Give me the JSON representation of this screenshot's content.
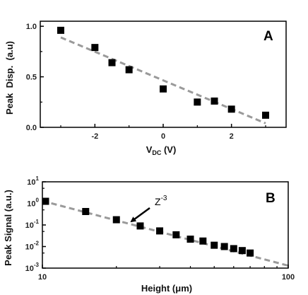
{
  "chart_data": [
    {
      "type": "scatter",
      "panel_label": "A",
      "xlabel_main": "V",
      "xlabel_sub": "DC",
      "xlabel_unit": " (V)",
      "ylabel": "Peak  Disp.  (a.u)",
      "xlim": [
        -3.6,
        3.6
      ],
      "ylim": [
        0.0,
        1.05
      ],
      "xticks": [
        {
          "v": -2,
          "label": "-2"
        },
        {
          "v": 0,
          "label": "0"
        },
        {
          "v": 2,
          "label": "2"
        }
      ],
      "yticks": [
        {
          "v": 0.0,
          "label": "0.0"
        },
        {
          "v": 0.5,
          "label": "0.5"
        },
        {
          "v": 1.0,
          "label": "1.0"
        }
      ],
      "points": [
        {
          "x": -3.0,
          "y": 0.96
        },
        {
          "x": -2.0,
          "y": 0.79
        },
        {
          "x": -1.5,
          "y": 0.64
        },
        {
          "x": -1.0,
          "y": 0.57
        },
        {
          "x": 0.0,
          "y": 0.38
        },
        {
          "x": 1.0,
          "y": 0.25
        },
        {
          "x": 1.5,
          "y": 0.26
        },
        {
          "x": 2.0,
          "y": 0.18
        },
        {
          "x": 3.0,
          "y": 0.12
        }
      ],
      "fit_line": [
        [
          -3.0,
          0.89
        ],
        [
          3.0,
          0.04
        ]
      ]
    },
    {
      "type": "scatter",
      "panel_label": "B",
      "xlabel_main": "Height (",
      "xlabel_mu": "μ",
      "xlabel_tail": "m)",
      "ylabel": "Peak Signal (a.u.)",
      "annotation": {
        "base": "Z",
        "exp": "-3"
      },
      "xscale": "log",
      "yscale": "log",
      "xlim": [
        10,
        100
      ],
      "ylim": [
        0.001,
        10
      ],
      "xticks": [
        {
          "v": 10,
          "label": "10"
        },
        {
          "v": 100,
          "label": "100"
        }
      ],
      "yticks": [
        {
          "v": 10,
          "base": "10",
          "exp": "1"
        },
        {
          "v": 1,
          "base": "10",
          "exp": "0"
        },
        {
          "v": 0.1,
          "base": "10",
          "exp": "-1"
        },
        {
          "v": 0.01,
          "base": "10",
          "exp": "-2"
        },
        {
          "v": 0.001,
          "base": "10",
          "exp": "-3"
        }
      ],
      "points": [
        {
          "x": 10.3,
          "y": 1.25
        },
        {
          "x": 15.0,
          "y": 0.42
        },
        {
          "x": 20.0,
          "y": 0.175
        },
        {
          "x": 25.0,
          "y": 0.09
        },
        {
          "x": 30.0,
          "y": 0.053
        },
        {
          "x": 35.0,
          "y": 0.035
        },
        {
          "x": 40.0,
          "y": 0.022
        },
        {
          "x": 45.0,
          "y": 0.018
        },
        {
          "x": 50.0,
          "y": 0.0115
        },
        {
          "x": 55.0,
          "y": 0.01
        },
        {
          "x": 60.0,
          "y": 0.008
        },
        {
          "x": 65.0,
          "y": 0.0065
        },
        {
          "x": 70.0,
          "y": 0.005
        }
      ],
      "fit_line": [
        [
          10,
          1.3
        ],
        [
          100,
          0.0013
        ]
      ]
    }
  ],
  "colors": {
    "marker": "#000000",
    "fit": "#9a9a9a",
    "axis": "#000000"
  }
}
